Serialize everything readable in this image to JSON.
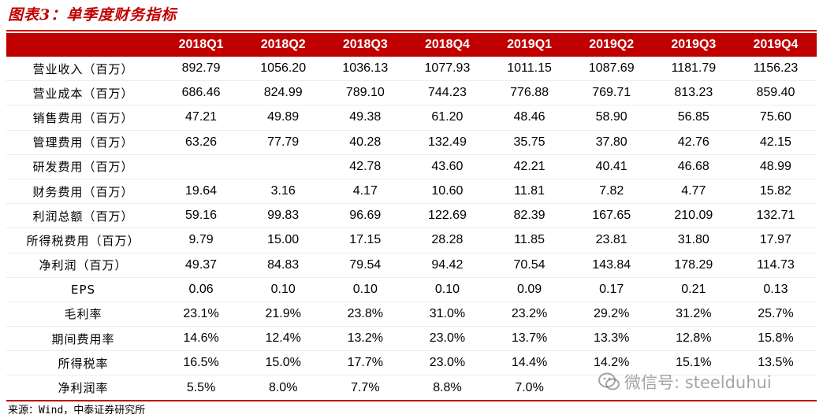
{
  "title": "图表3：单季度财务指标",
  "columns": [
    "",
    "2018Q1",
    "2018Q2",
    "2018Q3",
    "2018Q4",
    "2019Q1",
    "2019Q2",
    "2019Q3",
    "2019Q4"
  ],
  "rows": [
    {
      "label": "营业收入（百万）",
      "values": [
        "892.79",
        "1056.20",
        "1036.13",
        "1077.93",
        "1011.15",
        "1087.69",
        "1181.79",
        "1156.23"
      ]
    },
    {
      "label": "营业成本（百万）",
      "values": [
        "686.46",
        "824.99",
        "789.10",
        "744.23",
        "776.88",
        "769.71",
        "813.23",
        "859.40"
      ]
    },
    {
      "label": "销售费用（百万）",
      "values": [
        "47.21",
        "49.89",
        "49.38",
        "61.20",
        "48.46",
        "58.90",
        "56.85",
        "75.60"
      ]
    },
    {
      "label": "管理费用（百万）",
      "values": [
        "63.26",
        "77.79",
        "40.28",
        "132.49",
        "35.75",
        "37.80",
        "42.76",
        "42.15"
      ]
    },
    {
      "label": "研发费用（百万）",
      "values": [
        "",
        "",
        "42.78",
        "43.60",
        "42.21",
        "40.41",
        "46.68",
        "48.99"
      ]
    },
    {
      "label": "财务费用（百万）",
      "values": [
        "19.64",
        "3.16",
        "4.17",
        "10.60",
        "11.81",
        "7.82",
        "4.77",
        "15.82"
      ]
    },
    {
      "label": "利润总额（百万）",
      "values": [
        "59.16",
        "99.83",
        "96.69",
        "122.69",
        "82.39",
        "167.65",
        "210.09",
        "132.71"
      ]
    },
    {
      "label": "所得税费用（百万）",
      "values": [
        "9.79",
        "15.00",
        "17.15",
        "28.28",
        "11.85",
        "23.81",
        "31.80",
        "17.97"
      ]
    },
    {
      "label": "净利润（百万）",
      "values": [
        "49.37",
        "84.83",
        "79.54",
        "94.42",
        "70.54",
        "143.84",
        "178.29",
        "114.73"
      ]
    },
    {
      "label": "EPS",
      "values": [
        "0.06",
        "0.10",
        "0.10",
        "0.10",
        "0.09",
        "0.17",
        "0.21",
        "0.13"
      ]
    },
    {
      "label": "毛利率",
      "values": [
        "23.1%",
        "21.9%",
        "23.8%",
        "31.0%",
        "23.2%",
        "29.2%",
        "31.2%",
        "25.7%"
      ]
    },
    {
      "label": "期间费用率",
      "values": [
        "14.6%",
        "12.4%",
        "13.2%",
        "23.0%",
        "13.7%",
        "13.3%",
        "12.8%",
        "15.8%"
      ]
    },
    {
      "label": "所得税率",
      "values": [
        "16.5%",
        "15.0%",
        "17.7%",
        "23.0%",
        "14.4%",
        "14.2%",
        "15.1%",
        "13.5%"
      ]
    },
    {
      "label": "净利润率",
      "values": [
        "5.5%",
        "8.0%",
        "7.7%",
        "8.8%",
        "7.0%",
        "",
        "",
        ""
      ]
    }
  ],
  "source": "来源：Wind，中泰证券研究所",
  "watermark": {
    "text": "微信号: steelduhui",
    "icon": "wechat-icon"
  },
  "colors": {
    "accent": "#c00000",
    "text": "#000000"
  }
}
